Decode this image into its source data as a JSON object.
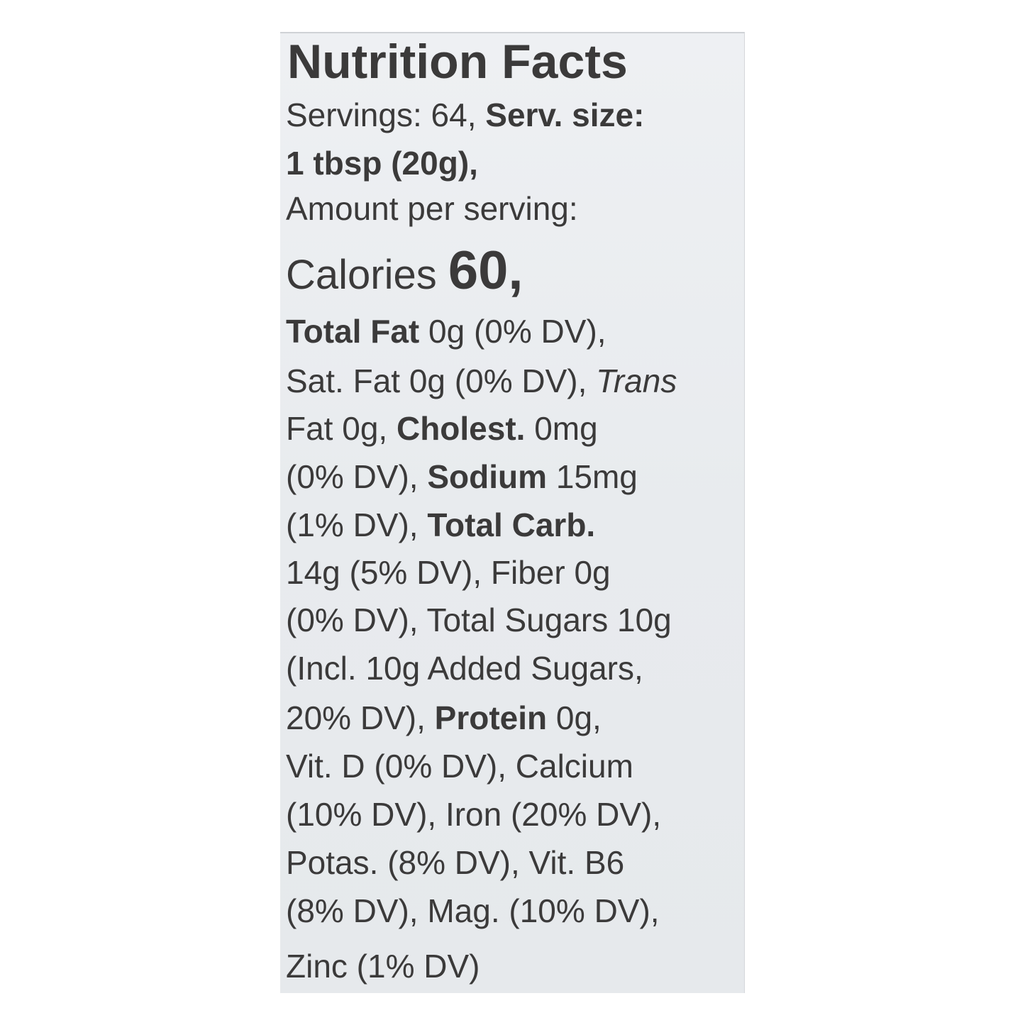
{
  "label": {
    "lines": [
      [
        {
          "text": "Nutrition Facts",
          "style": "b"
        }
      ],
      [
        {
          "text": "Servings: 64, ",
          "style": ""
        },
        {
          "text": "Serv. size:",
          "style": "b"
        }
      ],
      [
        {
          "text": "1 tbsp (20g),",
          "style": "b"
        }
      ],
      [
        {
          "text": "Amount per serving:",
          "style": ""
        }
      ],
      [
        {
          "text": "Calories ",
          "style": ""
        },
        {
          "text": "60,",
          "style": "b"
        }
      ],
      [
        {
          "text": "Total Fat",
          "style": "b"
        },
        {
          "text": " 0g (0% DV),",
          "style": ""
        }
      ],
      [
        {
          "text": "Sat. Fat 0g (0% DV), ",
          "style": ""
        },
        {
          "text": "Trans",
          "style": "i"
        }
      ],
      [
        {
          "text": "Fat 0g, ",
          "style": ""
        },
        {
          "text": "Cholest.",
          "style": "b"
        },
        {
          "text": " 0mg",
          "style": ""
        }
      ],
      [
        {
          "text": "(0% DV), ",
          "style": ""
        },
        {
          "text": "Sodium",
          "style": "b"
        },
        {
          "text": " 15mg",
          "style": ""
        }
      ],
      [
        {
          "text": "(1% DV), ",
          "style": ""
        },
        {
          "text": "Total Carb.",
          "style": "b"
        }
      ],
      [
        {
          "text": "14g (5% DV), Fiber 0g",
          "style": ""
        }
      ],
      [
        {
          "text": "(0% DV), Total Sugars 10g",
          "style": ""
        }
      ],
      [
        {
          "text": "(Incl. 10g Added Sugars,",
          "style": ""
        }
      ],
      [
        {
          "text": "20% DV), ",
          "style": ""
        },
        {
          "text": "Protein",
          "style": "b"
        },
        {
          "text": " 0g,",
          "style": ""
        }
      ],
      [
        {
          "text": "Vit. D (0% DV), Calcium",
          "style": ""
        }
      ],
      [
        {
          "text": "(10% DV), Iron (20% DV),",
          "style": ""
        }
      ],
      [
        {
          "text": "Potas. (8% DV), Vit. B6",
          "style": ""
        }
      ],
      [
        {
          "text": "(8% DV), Mag. (10% DV),",
          "style": ""
        }
      ],
      [
        {
          "text": "Zinc (1% DV)",
          "style": ""
        }
      ]
    ]
  },
  "colors": {
    "text": "#3b3a3a",
    "panel": "#e9ecef",
    "background": "#ffffff"
  }
}
